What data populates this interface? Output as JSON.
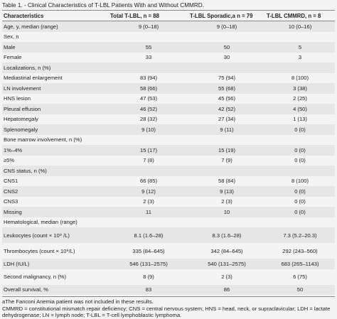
{
  "caption": "Table 1. - Clinical Characteristics of T-LBL Patients With and Without CMMRD.",
  "headers": [
    "Characteristics",
    "Total T-LBL, n = 88",
    "T-LBL Sporadic,a n = 79",
    "T-LBL CMMRD, n = 8"
  ],
  "rows": [
    {
      "label": "Age, y, median (range)",
      "v": [
        "9 (0–18)",
        "9 (0–18)",
        "10 (0–16)"
      ],
      "kind": "row"
    },
    {
      "label": "Sex, n",
      "v": [
        "",
        "",
        ""
      ],
      "kind": "row"
    },
    {
      "label": "Male",
      "v": [
        "55",
        "50",
        "5"
      ],
      "kind": "row"
    },
    {
      "label": "Female",
      "v": [
        "33",
        "30",
        "3"
      ],
      "kind": "row"
    },
    {
      "label": "Localizations, n (%)",
      "v": [
        "",
        "",
        ""
      ],
      "kind": "row"
    },
    {
      "label": "Mediastinal enlargement",
      "v": [
        "83 (94)",
        "75 (94)",
        "8 (100)"
      ],
      "kind": "row"
    },
    {
      "label": "LN involvement",
      "v": [
        "58 (66)",
        "55 (68)",
        "3 (38)"
      ],
      "kind": "row"
    },
    {
      "label": "HNS lesion",
      "v": [
        "47 (53)",
        "45 (56)",
        "2 (25)"
      ],
      "kind": "row"
    },
    {
      "label": "Pleural effusion",
      "v": [
        "46 (52)",
        "42 (52)",
        "4 (50)"
      ],
      "kind": "row"
    },
    {
      "label": "Hepatomegaly",
      "v": [
        "28 (32)",
        "27 (34)",
        "1 (13)"
      ],
      "kind": "row"
    },
    {
      "label": "Splenomegaly",
      "v": [
        "9 (10)",
        "9 (11)",
        "0 (0)"
      ],
      "kind": "row"
    },
    {
      "label": "Bone marrow involvement, n (%)",
      "v": [
        "",
        "",
        ""
      ],
      "kind": "row"
    },
    {
      "label": "1%–4%",
      "v": [
        "15 (17)",
        "15 (19)",
        "0 (0)"
      ],
      "kind": "row"
    },
    {
      "label": "≥5%",
      "v": [
        "7 (8)",
        "7 (9)",
        "0 (0)"
      ],
      "kind": "row"
    },
    {
      "label": "CNS status, n (%)",
      "v": [
        "",
        "",
        ""
      ],
      "kind": "row"
    },
    {
      "label": "CNS1",
      "v": [
        "66 (85)",
        "58 (84)",
        "8 (100)"
      ],
      "kind": "row"
    },
    {
      "label": "CNS2",
      "v": [
        "9 (12)",
        "9 (13)",
        "0 (0)"
      ],
      "kind": "row"
    },
    {
      "label": "CNS3",
      "v": [
        "2 (3)",
        "2 (3)",
        "0 (0)"
      ],
      "kind": "row"
    },
    {
      "label": "Missing",
      "v": [
        "11",
        "10",
        "0 (0)"
      ],
      "kind": "row"
    },
    {
      "label": "Hematological, median (range)",
      "v": [
        "",
        "",
        ""
      ],
      "kind": "row"
    },
    {
      "label": "Leukocytes (count × 10⁹ /L)",
      "v": [
        "8.1 (1.6–28)",
        "8.3 (1.6–28)",
        "7.3 (5.2–20.3)"
      ],
      "kind": "tall"
    },
    {
      "label": "Thrombocytes (count × 10⁹/L)",
      "v": [
        "335 (84–645)",
        "342 (84–645)",
        "292 (243–560)"
      ],
      "kind": "tall"
    },
    {
      "label": "LDH (IU/L)",
      "v": [
        "546 (131–2575)",
        "540 (131–2575)",
        "683 (265–1143)"
      ],
      "kind": "row"
    },
    {
      "label": "Second malignancy, n (%)",
      "v": [
        "8 (9)",
        "2 (3)",
        "6 (75)"
      ],
      "kind": "tall"
    },
    {
      "label": "Overall survival, %",
      "v": [
        "83",
        "86",
        "50"
      ],
      "kind": "row"
    }
  ],
  "footnotes": [
    "aThe Fanconi Anemia patient was not included in these results.",
    "CMMRD = constitutional mismatch repair deficiency; CNS = central nervous system; HNS = head, neck, or supraclavicular; LDH = lactate dehydrogenase; LN = lymph node; T-LBL = T-cell lymphoblastic lymphoma."
  ]
}
